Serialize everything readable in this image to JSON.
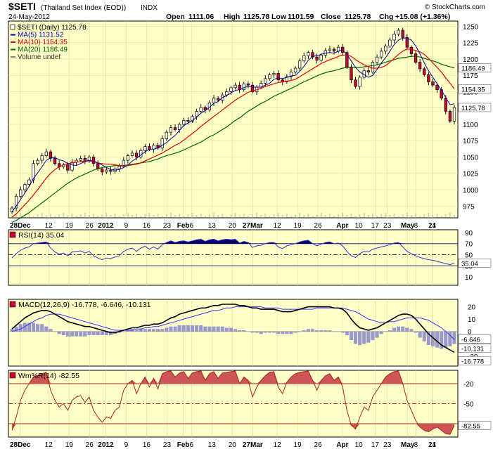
{
  "header": {
    "symbol": "$SETI",
    "name": "(Thailand Set Index (EOD))",
    "exchange": "INDX",
    "date": "24-May-2012",
    "open_label": "Open",
    "open": "1111.06",
    "high_label": "High",
    "high": "1125.78",
    "low_label": "Low",
    "low": "1101.59",
    "close_label": "Close",
    "close": "1125.78",
    "chg_label": "Chg",
    "chg": "+15.08 (+1.36%)",
    "watermark": "© StockCharts.com"
  },
  "legend": {
    "main": "$SETI (Daily) 1125.78",
    "ma5": "MA(5) 1131.52",
    "ma10": "MA(10) 1154.35",
    "ma20": "MA(20) 1186.49",
    "volume": "Volume undef"
  },
  "panels": {
    "rsi_title": "RSI(14) 35.04",
    "macd_title": "MACD(12,26,9) -16.778, -6.646, -10.131",
    "willr_title": "Wm%R(14) -82.55"
  },
  "tags": {
    "ma20": "1186.49",
    "ma10": "1154.35",
    "close": "1125.78",
    "rsi": "35.04",
    "macd_signal": "-6.646",
    "macd_hist": "-10.131",
    "macd": "-16.778",
    "willr": "-82.55"
  },
  "x_tick_labels": [
    "28Dec",
    "12",
    "19",
    "26",
    "2012",
    "9",
    "16",
    "23",
    "Feb",
    "6",
    "13",
    "20",
    "27Mar",
    "12",
    "19",
    "26",
    "Apr",
    "10",
    "17",
    "23",
    "May",
    "8",
    "14",
    "21"
  ],
  "colors": {
    "panel_bg": "#ffffc8",
    "up_candle": "#ffffff",
    "down_candle": "#cc0033",
    "ma5": "#0000aa",
    "ma10": "#dd0000",
    "ma20": "#006600",
    "rsi": "#3333cc",
    "rsi_fill": "#000066",
    "macd": "#000000",
    "signal": "#3333ff",
    "hist": "#9999cc",
    "willr": "#aa2222",
    "willr_fill": "#cc5555",
    "volume": "#888888"
  },
  "chart_data": [
    {
      "type": "candlestick",
      "title": "$SETI (Thailand Set Index (EOD)) INDX",
      "y_axis_ticks": [
        975,
        1000,
        1025,
        1050,
        1075,
        1100,
        1125,
        1150,
        1175,
        1200,
        1225,
        1250
      ],
      "ylim": [
        957,
        1258
      ],
      "x_range": "2011-12-26 to 2012-05-24",
      "close": [
        972,
        990,
        1000,
        1008,
        1015,
        1040,
        1045,
        1052,
        1058,
        1048,
        1040,
        1035,
        1038,
        1030,
        1042,
        1045,
        1048,
        1044,
        1050,
        1040,
        1032,
        1027,
        1030,
        1028,
        1032,
        1036,
        1045,
        1052,
        1056,
        1050,
        1060,
        1066,
        1062,
        1068,
        1064,
        1078,
        1088,
        1095,
        1092,
        1100,
        1106,
        1105,
        1112,
        1120,
        1126,
        1122,
        1133,
        1140,
        1137,
        1145,
        1150,
        1156,
        1160,
        1153,
        1162,
        1160,
        1150,
        1157,
        1163,
        1170,
        1176,
        1178,
        1168,
        1165,
        1173,
        1180,
        1186,
        1197,
        1205,
        1210,
        1203,
        1198,
        1206,
        1213,
        1215,
        1212,
        1218,
        1210,
        1188,
        1168,
        1158,
        1172,
        1182,
        1180,
        1195,
        1203,
        1212,
        1220,
        1229,
        1238,
        1244,
        1233,
        1218,
        1208,
        1195,
        1185,
        1176,
        1165,
        1160,
        1153,
        1140,
        1120,
        1105,
        1125.78
      ],
      "ma5": [
        966,
        975,
        985,
        995,
        1005,
        1017,
        1026,
        1035,
        1045,
        1049,
        1049,
        1046,
        1044,
        1040,
        1038,
        1037,
        1040,
        1043,
        1045,
        1044,
        1041,
        1038,
        1034,
        1031,
        1030,
        1031,
        1034,
        1038,
        1044,
        1048,
        1053,
        1058,
        1062,
        1062,
        1064,
        1068,
        1072,
        1078,
        1083,
        1091,
        1098,
        1102,
        1106,
        1111,
        1117,
        1121,
        1126,
        1132,
        1135,
        1141,
        1144,
        1148,
        1152,
        1153,
        1156,
        1158,
        1157,
        1157,
        1157,
        1160,
        1163,
        1169,
        1171,
        1170,
        1172,
        1174,
        1175,
        1181,
        1189,
        1198,
        1204,
        1205,
        1207,
        1209,
        1210,
        1209,
        1212,
        1214,
        1207,
        1197,
        1187,
        1180,
        1176,
        1172,
        1175,
        1184,
        1194,
        1202,
        1212,
        1222,
        1229,
        1232,
        1232,
        1229,
        1220,
        1208,
        1194,
        1182,
        1172,
        1162,
        1152,
        1141,
        1130,
        1131.52
      ],
      "ma10": [
        958,
        963,
        970,
        977,
        984,
        992,
        1000,
        1009,
        1018,
        1025,
        1031,
        1035,
        1038,
        1040,
        1041,
        1042,
        1043,
        1044,
        1044,
        1043,
        1041,
        1040,
        1039,
        1039,
        1038,
        1037,
        1036,
        1037,
        1038,
        1039,
        1041,
        1044,
        1047,
        1050,
        1053,
        1056,
        1060,
        1064,
        1068,
        1071,
        1076,
        1081,
        1086,
        1091,
        1097,
        1102,
        1107,
        1112,
        1117,
        1122,
        1127,
        1132,
        1137,
        1141,
        1145,
        1149,
        1151,
        1153,
        1155,
        1158,
        1160,
        1162,
        1164,
        1165,
        1166,
        1167,
        1169,
        1173,
        1177,
        1181,
        1185,
        1189,
        1193,
        1196,
        1199,
        1201,
        1204,
        1206,
        1206,
        1204,
        1199,
        1195,
        1191,
        1188,
        1186,
        1186,
        1187,
        1190,
        1195,
        1201,
        1207,
        1212,
        1215,
        1215,
        1213,
        1211,
        1207,
        1201,
        1194,
        1187,
        1180,
        1171,
        1163,
        1154.35
      ],
      "ma20": [
        950,
        953,
        957,
        961,
        965,
        970,
        975,
        980,
        985,
        990,
        995,
        1000,
        1005,
        1010,
        1014,
        1018,
        1021,
        1024,
        1027,
        1030,
        1032,
        1034,
        1035,
        1036,
        1037,
        1037,
        1037,
        1038,
        1039,
        1040,
        1041,
        1042,
        1043,
        1045,
        1047,
        1050,
        1052,
        1054,
        1056,
        1058,
        1061,
        1064,
        1067,
        1070,
        1073,
        1077,
        1081,
        1084,
        1088,
        1092,
        1096,
        1101,
        1106,
        1110,
        1115,
        1120,
        1124,
        1128,
        1132,
        1135,
        1139,
        1143,
        1146,
        1149,
        1152,
        1155,
        1158,
        1162,
        1165,
        1168,
        1171,
        1174,
        1177,
        1179,
        1181,
        1182,
        1184,
        1186,
        1187,
        1187,
        1187,
        1187,
        1188,
        1189,
        1190,
        1191,
        1193,
        1195,
        1197,
        1199,
        1201,
        1202,
        1203,
        1204,
        1204,
        1203,
        1201,
        1199,
        1197,
        1195,
        1192,
        1190,
        1188,
        1186.49
      ]
    },
    {
      "type": "line",
      "title": "RSI(14) 35.04",
      "y_axis_ticks": [
        10,
        30,
        50,
        70,
        90
      ],
      "reference_lines": [
        30,
        50,
        70
      ],
      "values": [
        44,
        52,
        58,
        62,
        64,
        70,
        71,
        72,
        73,
        62,
        55,
        51,
        53,
        48,
        55,
        56,
        57,
        53,
        56,
        48,
        44,
        41,
        44,
        43,
        46,
        48,
        56,
        60,
        62,
        56,
        62,
        65,
        60,
        64,
        60,
        68,
        72,
        75,
        72,
        74,
        75,
        73,
        75,
        77,
        78,
        74,
        77,
        78,
        75,
        77,
        78,
        77,
        78,
        71,
        74,
        72,
        63,
        66,
        67,
        70,
        72,
        72,
        64,
        61,
        66,
        68,
        70,
        73,
        75,
        76,
        70,
        66,
        69,
        72,
        73,
        70,
        71,
        66,
        56,
        48,
        45,
        52,
        56,
        55,
        60,
        62,
        64,
        66,
        68,
        71,
        72,
        64,
        56,
        52,
        48,
        45,
        43,
        41,
        40,
        38,
        36,
        34,
        32,
        35.04
      ]
    },
    {
      "type": "line",
      "title": "MACD(12,26,9) -16.778, -6.646, -10.131",
      "y_axis_ticks": [
        -20,
        -10,
        0,
        10,
        20
      ],
      "series": [
        {
          "name": "MACD",
          "values": [
            2,
            5,
            8,
            11,
            13,
            15,
            16,
            17,
            17,
            16,
            14,
            12,
            10,
            8,
            7,
            6,
            5,
            4,
            4,
            3,
            2,
            1,
            0,
            -1,
            -1,
            0,
            1,
            2,
            3,
            3,
            4,
            5,
            5,
            6,
            6,
            7,
            9,
            11,
            12,
            14,
            15,
            16,
            17,
            18,
            19,
            19,
            20,
            21,
            21,
            22,
            22,
            22,
            22,
            21,
            21,
            20,
            19,
            19,
            18,
            18,
            18,
            18,
            17,
            16,
            16,
            16,
            17,
            18,
            19,
            20,
            20,
            20,
            20,
            20,
            20,
            19,
            19,
            18,
            15,
            10,
            6,
            3,
            2,
            1,
            2,
            3,
            5,
            7,
            9,
            11,
            13,
            14,
            14,
            13,
            10,
            6,
            2,
            -2,
            -5,
            -8,
            -11,
            -13,
            -15,
            -16.778
          ]
        },
        {
          "name": "Signal",
          "values": [
            0,
            1,
            2,
            4,
            6,
            8,
            10,
            11,
            13,
            14,
            14,
            14,
            13,
            12,
            11,
            10,
            9,
            8,
            7,
            6,
            5,
            4,
            3,
            2,
            1,
            1,
            1,
            1,
            1,
            2,
            2,
            3,
            3,
            4,
            4,
            5,
            6,
            7,
            8,
            9,
            10,
            11,
            12,
            13,
            14,
            15,
            16,
            17,
            17,
            18,
            19,
            19,
            20,
            20,
            20,
            20,
            20,
            20,
            20,
            19,
            19,
            19,
            19,
            18,
            18,
            18,
            18,
            18,
            18,
            18,
            18,
            19,
            19,
            19,
            19,
            19,
            19,
            19,
            18,
            17,
            16,
            14,
            12,
            10,
            9,
            8,
            7,
            7,
            8,
            8,
            9,
            10,
            11,
            11,
            11,
            11,
            10,
            9,
            7,
            5,
            3,
            0,
            -3,
            -6.646
          ]
        }
      ],
      "histogram_name": "MACD Histogram"
    },
    {
      "type": "line",
      "title": "Wm%R(14) -82.55",
      "y_axis_ticks": [
        -20,
        -50,
        -80
      ],
      "reference_lines": [
        -20,
        -50,
        -80
      ],
      "values": [
        -90,
        -70,
        -45,
        -30,
        -20,
        -10,
        -8,
        -5,
        -3,
        -30,
        -45,
        -55,
        -50,
        -60,
        -45,
        -40,
        -38,
        -48,
        -40,
        -60,
        -70,
        -78,
        -70,
        -72,
        -60,
        -55,
        -30,
        -20,
        -15,
        -35,
        -20,
        -10,
        -25,
        -12,
        -28,
        -5,
        -2,
        -1,
        -10,
        -4,
        -2,
        -12,
        -4,
        -2,
        -1,
        -15,
        -5,
        -2,
        -12,
        -4,
        -3,
        -2,
        -1,
        -20,
        -10,
        -15,
        -40,
        -25,
        -15,
        -8,
        -3,
        -2,
        -25,
        -35,
        -18,
        -10,
        -5,
        -3,
        -2,
        -1,
        -15,
        -30,
        -15,
        -8,
        -5,
        -15,
        -10,
        -25,
        -60,
        -82,
        -88,
        -70,
        -55,
        -60,
        -40,
        -30,
        -20,
        -10,
        -5,
        -2,
        -1,
        -20,
        -45,
        -60,
        -75,
        -85,
        -90,
        -92,
        -88,
        -85,
        -90,
        -95,
        -96,
        -82.55
      ]
    }
  ]
}
